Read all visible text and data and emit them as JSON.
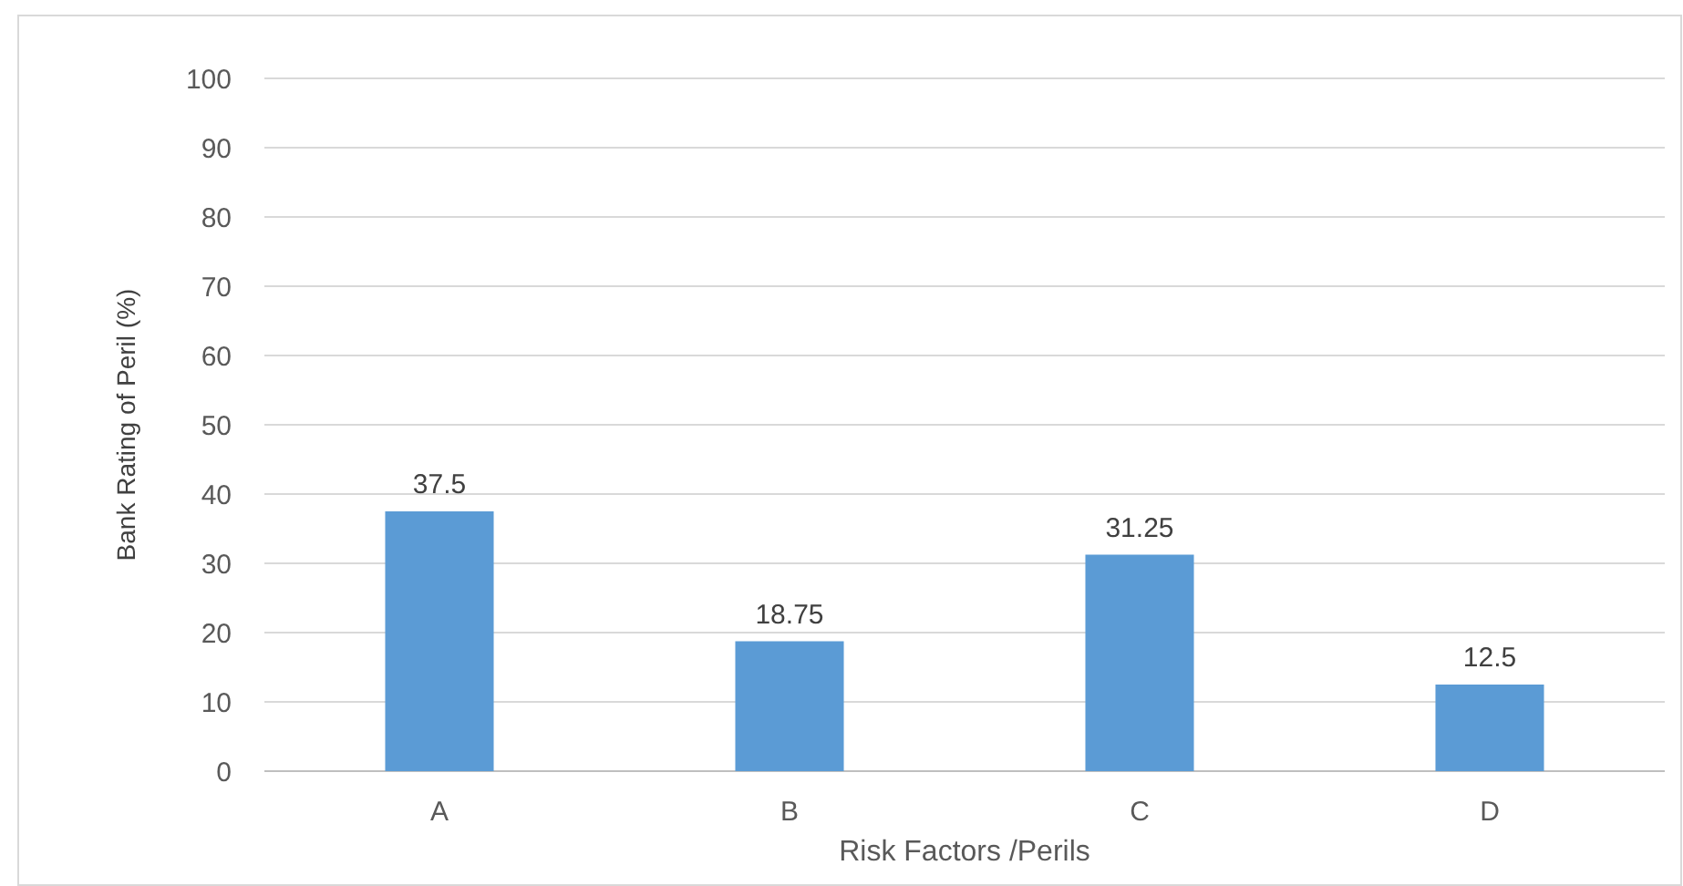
{
  "chart_data": {
    "type": "bar",
    "xlabel": "Risk Factors /Perils",
    "ylabel": "Bank Rating of Peril (%)",
    "categories": [
      "A",
      "B",
      "C",
      "D"
    ],
    "values": [
      37.5,
      18.75,
      31.25,
      12.5
    ],
    "color": "#5b9bd5",
    "data_labels": true,
    "grid": "y",
    "ylim": [
      0,
      100
    ],
    "yticks": [
      0,
      10,
      20,
      30,
      40,
      50,
      60,
      70,
      80,
      90,
      100
    ]
  }
}
